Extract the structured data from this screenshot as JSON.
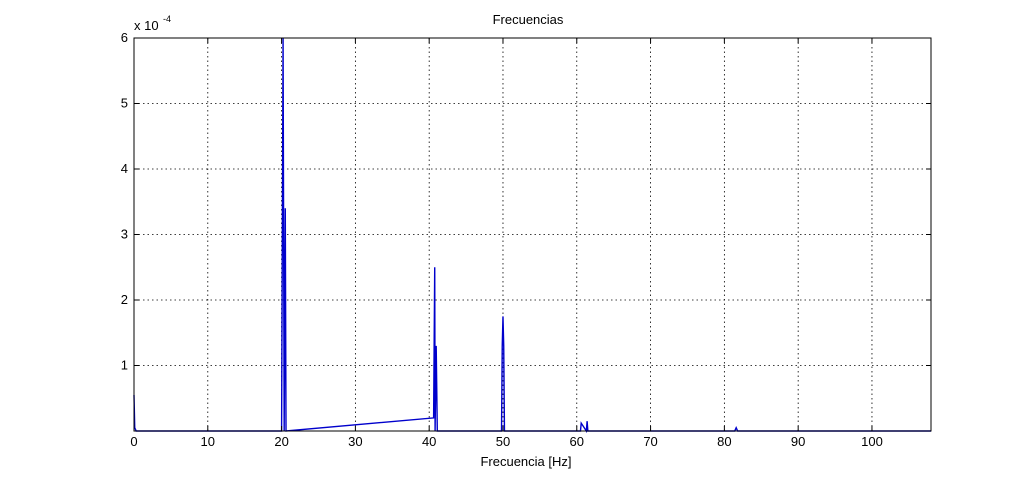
{
  "chart_data": {
    "type": "line",
    "title": "Frecuencias",
    "xlabel": "Frecuencia [Hz]",
    "ylabel": "",
    "xlim": [
      0,
      108
    ],
    "ylim": [
      0,
      6
    ],
    "y_scale_exponent": "x 10",
    "y_scale_exponent_power": "-4",
    "x_ticks": [
      "0",
      "10",
      "20",
      "30",
      "40",
      "50",
      "60",
      "70",
      "80",
      "90",
      "100"
    ],
    "y_ticks": [
      "1",
      "2",
      "3",
      "4",
      "5",
      "6"
    ],
    "grid": true,
    "legend": "none",
    "series": [
      {
        "color": "#0000cc",
        "x": [
          0,
          0.1,
          0.3,
          20.0,
          20.2,
          20.35,
          20.5,
          20.6,
          40.6,
          40.75,
          40.8,
          40.95,
          41.1,
          49.8,
          49.9,
          50.0,
          50.1,
          50.2,
          60.5,
          60.6,
          61.3,
          61.4,
          61.5,
          81.4,
          81.6,
          81.8,
          108
        ],
        "y": [
          0.55,
          0.05,
          0.0,
          0.0,
          6.0,
          0.0,
          3.4,
          0.0,
          0.2,
          2.5,
          0.0,
          1.3,
          0.0,
          0.0,
          1.3,
          1.75,
          1.3,
          0.0,
          0.0,
          0.12,
          0.0,
          0.15,
          0.0,
          0.0,
          0.05,
          0.0,
          0.0
        ]
      }
    ]
  }
}
